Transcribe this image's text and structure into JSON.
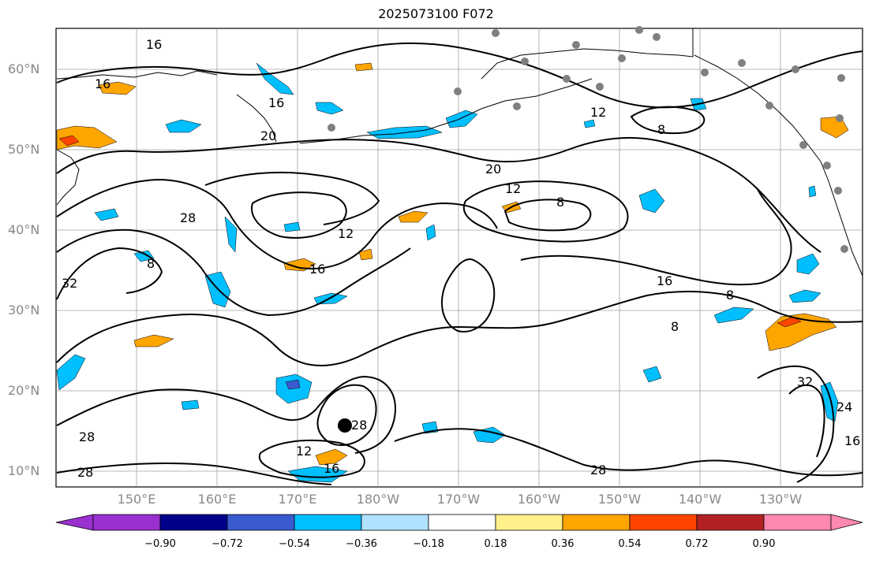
{
  "title": "2025073100 F072",
  "lat_labels": [
    "60°N",
    "50°N",
    "40°N",
    "30°N",
    "20°N",
    "10°N"
  ],
  "lon_labels": [
    "150°E",
    "160°E",
    "170°E",
    "180°W",
    "170°W",
    "160°W",
    "150°W",
    "140°W",
    "130°W"
  ],
  "contour_labels": [
    "16",
    "16",
    "16",
    "20",
    "20",
    "28",
    "32",
    "12",
    "12",
    "8",
    "8",
    "8",
    "8",
    "12",
    "16",
    "8",
    "28",
    "32",
    "24",
    "16",
    "28",
    "28",
    "28",
    "12",
    "16",
    "16"
  ],
  "colorbar": {
    "ticks": [
      "−0.90",
      "−0.72",
      "−0.54",
      "−0.36",
      "−0.18",
      "0.18",
      "0.36",
      "0.54",
      "0.72",
      "0.90"
    ],
    "colors": [
      "#9b30d0",
      "#00008b",
      "#3a5bd0",
      "#00bfff",
      "#b0e2ff",
      "#ffffff",
      "#fff08a",
      "#ffa500",
      "#ff4500",
      "#b22222",
      "#ff88b0"
    ]
  }
}
